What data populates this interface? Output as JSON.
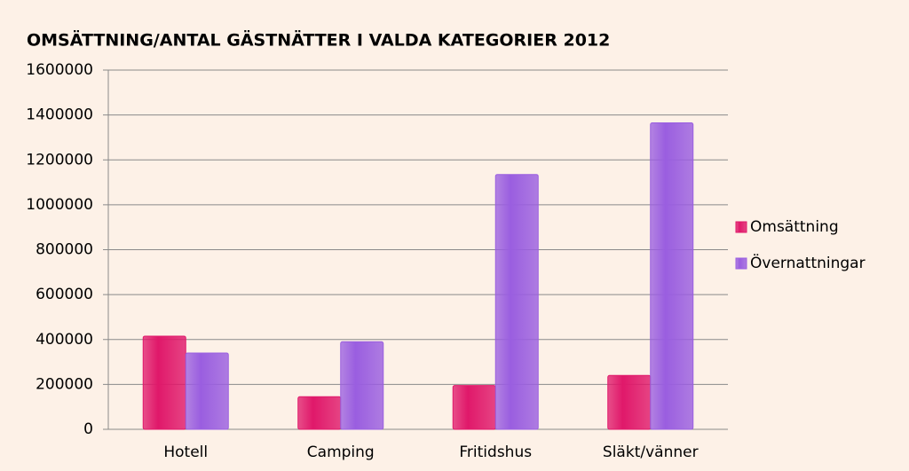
{
  "chart_data": {
    "type": "bar",
    "title": "OMSÄTTNING/ANTAL GÄSTNÄTTER I VALDA KATEGORIER 2012",
    "categories": [
      "Hotell",
      "Camping",
      "Fritidshus",
      "Släkt/vänner"
    ],
    "series": [
      {
        "name": "Omsättning",
        "color": "#e0186a",
        "values": [
          415000,
          145000,
          195000,
          240000
        ]
      },
      {
        "name": "Övernattningar",
        "color": "#9a5ee0",
        "values": [
          340000,
          390000,
          1135000,
          1365000
        ]
      }
    ],
    "ylim": [
      0,
      1600000
    ],
    "yticks": [
      0,
      200000,
      400000,
      600000,
      800000,
      1000000,
      1200000,
      1400000,
      1600000
    ],
    "grid": true,
    "legend": "right"
  }
}
